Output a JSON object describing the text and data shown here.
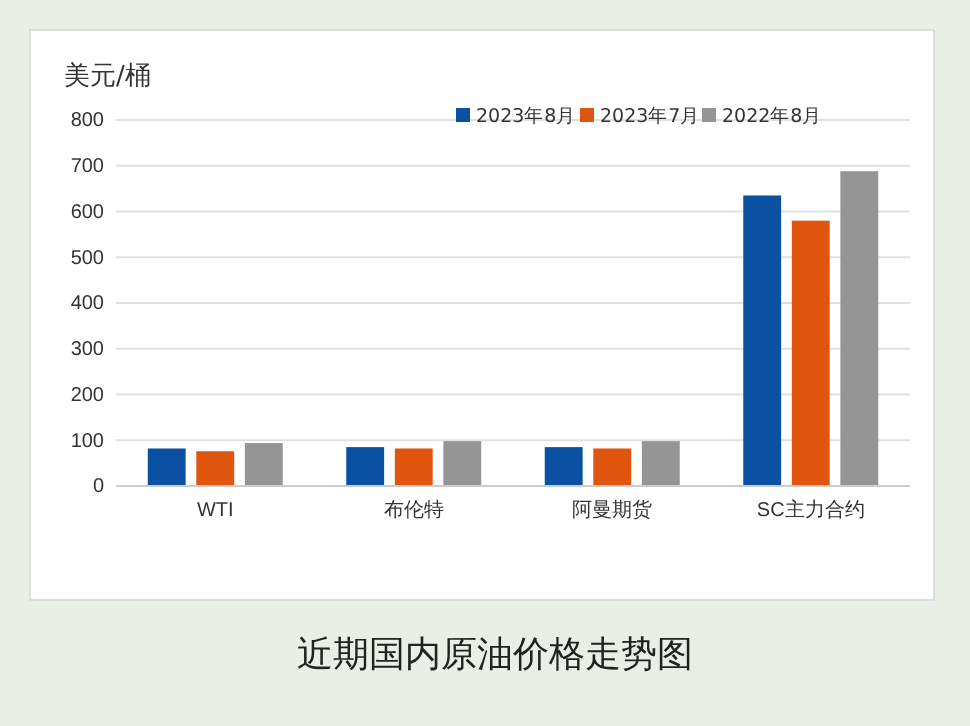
{
  "chart_data": {
    "type": "bar",
    "title": "近期国内原油价格走势图",
    "ylabel": "美元/桶",
    "categories": [
      "WTI",
      "布伦特",
      "阿曼期货",
      "SC主力合约"
    ],
    "series": [
      {
        "name": "2023年8月",
        "color": "#0b51a3",
        "values": [
          82,
          85,
          85,
          635
        ]
      },
      {
        "name": "2023年7月",
        "color": "#e0560f",
        "values": [
          76,
          82,
          82,
          580
        ]
      },
      {
        "name": "2022年8月",
        "color": "#959595",
        "values": [
          94,
          98,
          98,
          688
        ]
      }
    ],
    "ylim": [
      0,
      800
    ],
    "yticks": [
      0,
      100,
      200,
      300,
      400,
      500,
      600,
      700,
      800
    ],
    "grid": "y",
    "legend": "top right"
  }
}
